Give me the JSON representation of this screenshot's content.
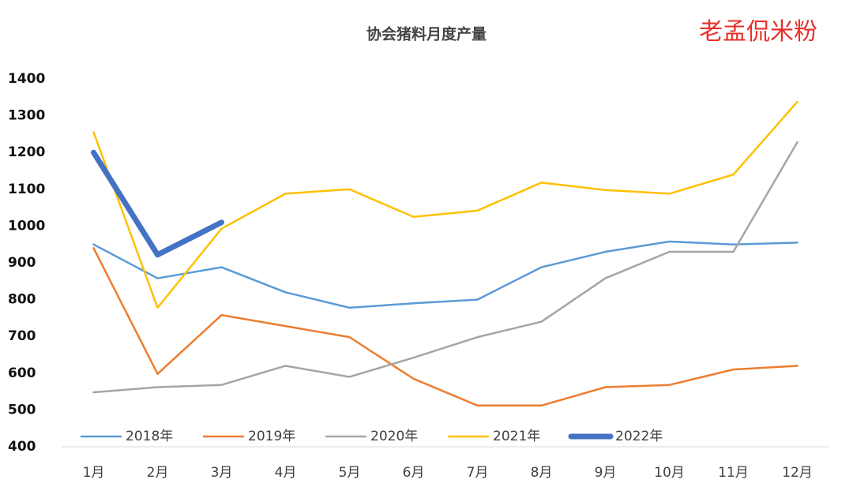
{
  "chart_data": {
    "type": "line",
    "title": "协会猪料月度产量",
    "watermark": "老孟侃米粉",
    "categories": [
      "1月",
      "2月",
      "3月",
      "4月",
      "5月",
      "6月",
      "7月",
      "8月",
      "9月",
      "10月",
      "11月",
      "12月"
    ],
    "series": [
      {
        "name": "2018年",
        "color": "#5b9bd5",
        "values": [
          950,
          858,
          888,
          820,
          778,
          790,
          800,
          888,
          930,
          958,
          950,
          955
        ]
      },
      {
        "name": "2019年",
        "color": "#ed7d31",
        "values": [
          940,
          598,
          758,
          728,
          698,
          585,
          512,
          512,
          562,
          568,
          610,
          620
        ]
      },
      {
        "name": "2020年",
        "color": "#a5a5a5",
        "values": [
          548,
          562,
          568,
          620,
          590,
          642,
          698,
          740,
          858,
          930,
          930,
          1228
        ]
      },
      {
        "name": "2021年",
        "color": "#ffc000",
        "values": [
          1255,
          778,
          993,
          1088,
          1100,
          1025,
          1042,
          1118,
          1098,
          1088,
          1140,
          1338
        ]
      },
      {
        "name": "2022年",
        "color": "#4472c4",
        "values": [
          1200,
          922,
          1010,
          null,
          null,
          null,
          null,
          null,
          null,
          null,
          null,
          null
        ]
      }
    ],
    "ylim": [
      400,
      1400
    ],
    "yticks": [
      400,
      500,
      600,
      700,
      800,
      900,
      1000,
      1100,
      1200,
      1300,
      1400
    ],
    "grid": false,
    "legend": "bottom"
  }
}
